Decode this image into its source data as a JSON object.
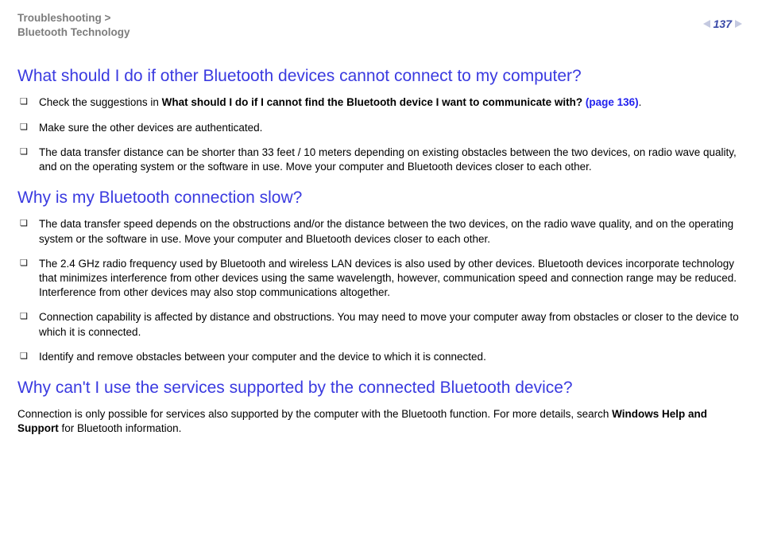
{
  "header": {
    "breadcrumb_line1": "Troubleshooting >",
    "breadcrumb_line2": "Bluetooth Technology",
    "page_number": "137"
  },
  "colors": {
    "heading": "#3a3ae0",
    "breadcrumb": "#7d7d7d",
    "pagenum": "#3a4aa8",
    "link": "#2222ee",
    "text": "#000000",
    "arrow": "#c4c9e0",
    "background": "#ffffff"
  },
  "sections": [
    {
      "heading": "What should I do if other Bluetooth devices cannot connect to my computer?",
      "items": [
        {
          "pre": "Check the suggestions in ",
          "bold": "What should I do if I cannot find the Bluetooth device I want to communicate with? ",
          "link": "(page 136)",
          "post": "."
        },
        {
          "text": "Make sure the other devices are authenticated."
        },
        {
          "text": "The data transfer distance can be shorter than 33 feet / 10 meters depending on existing obstacles between the two devices, on radio wave quality, and on the operating system or the software in use. Move your computer and Bluetooth devices closer to each other."
        }
      ]
    },
    {
      "heading": "Why is my Bluetooth connection slow?",
      "items": [
        {
          "text": "The data transfer speed depends on the obstructions and/or the distance between the two devices, on the radio wave quality, and on the operating system or the software in use. Move your computer and Bluetooth devices closer to each other."
        },
        {
          "text": "The 2.4 GHz radio frequency used by Bluetooth and wireless LAN devices is also used by other devices. Bluetooth devices incorporate technology that minimizes interference from other devices using the same wavelength, however, communication speed and connection range may be reduced. Interference from other devices may also stop communications altogether."
        },
        {
          "text": "Connection capability is affected by distance and obstructions. You may need to move your computer away from obstacles or closer to the device to which it is connected."
        },
        {
          "text": "Identify and remove obstacles between your computer and the device to which it is connected."
        }
      ]
    },
    {
      "heading": "Why can't I use the services supported by the connected Bluetooth device?",
      "para_pre": "Connection is only possible for services also supported by the computer with the Bluetooth function. For more details, search ",
      "para_bold": "Windows Help and Support",
      "para_post": " for Bluetooth information."
    }
  ]
}
